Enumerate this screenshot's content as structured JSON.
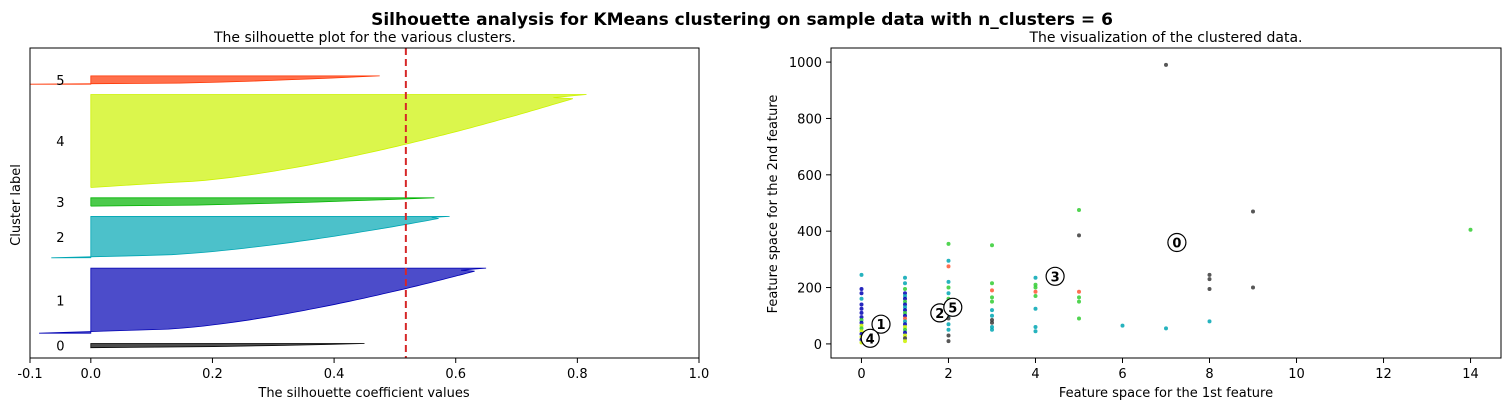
{
  "suptitle": "Silhouette analysis for KMeans clustering on sample data with n_clusters = 6",
  "chart_data": [
    {
      "type": "area",
      "title": "The silhouette plot for the various clusters.",
      "xlabel": "The silhouette coefficient values",
      "ylabel": "Cluster label",
      "xlim": [
        -0.1,
        1.0
      ],
      "xticks": [
        -0.1,
        0.0,
        0.2,
        0.4,
        0.6,
        0.8,
        1.0
      ],
      "xtick_labels": [
        "-0.1",
        "0.0",
        "0.2",
        "0.4",
        "0.6",
        "0.8",
        "1.0"
      ],
      "ylim": [
        0,
        300
      ],
      "average_silhouette_score": 0.518,
      "average_line_color": "#d62728",
      "clusters": [
        {
          "label": "0",
          "y_lower": 10,
          "y_upper": 14,
          "max": 0.45,
          "min": 0.0,
          "color": "#000000"
        },
        {
          "label": "1",
          "y_lower": 24,
          "y_upper": 87,
          "max": 0.65,
          "min": -0.085,
          "color": "#0000b3"
        },
        {
          "label": "2",
          "y_lower": 97,
          "y_upper": 137,
          "max": 0.59,
          "min": -0.065,
          "color": "#00a6b3"
        },
        {
          "label": "3",
          "y_lower": 147,
          "y_upper": 155,
          "max": 0.565,
          "min": 0.0,
          "color": "#00b300"
        },
        {
          "label": "4",
          "y_lower": 165,
          "y_upper": 255,
          "max": 0.815,
          "min": 0.0,
          "color": "#ccf200"
        },
        {
          "label": "5",
          "y_lower": 265,
          "y_upper": 273,
          "max": 0.475,
          "min": -0.1,
          "color": "#ff3300"
        }
      ]
    },
    {
      "type": "scatter",
      "title": "The visualization of the clustered data.",
      "xlabel": "Feature space for the 1st feature",
      "ylabel": "Feature space for the 2nd feature",
      "xlim": [
        -0.7,
        14.7
      ],
      "ylim": [
        -50,
        1050
      ],
      "xticks": [
        0,
        2,
        4,
        6,
        8,
        10,
        12,
        14
      ],
      "yticks": [
        0,
        200,
        400,
        600,
        800,
        1000
      ],
      "centers": [
        {
          "label": "0",
          "x": 7.25,
          "y": 360
        },
        {
          "label": "1",
          "x": 0.45,
          "y": 70
        },
        {
          "label": "2",
          "x": 1.8,
          "y": 110
        },
        {
          "label": "3",
          "x": 4.45,
          "y": 240
        },
        {
          "label": "4",
          "x": 0.2,
          "y": 20
        },
        {
          "label": "5",
          "x": 2.1,
          "y": 130
        }
      ],
      "points": [
        {
          "x": 7,
          "y": 990,
          "c": "#3a3a3a"
        },
        {
          "x": 9,
          "y": 470,
          "c": "#3a3a3a"
        },
        {
          "x": 5,
          "y": 385,
          "c": "#3a3a3a"
        },
        {
          "x": 8,
          "y": 245,
          "c": "#3a3a3a"
        },
        {
          "x": 8,
          "y": 230,
          "c": "#3a3a3a"
        },
        {
          "x": 8,
          "y": 195,
          "c": "#3a3a3a"
        },
        {
          "x": 9,
          "y": 200,
          "c": "#3a3a3a"
        },
        {
          "x": 14,
          "y": 405,
          "c": "#33cc33"
        },
        {
          "x": 5,
          "y": 475,
          "c": "#33cc33"
        },
        {
          "x": 5,
          "y": 165,
          "c": "#33cc33"
        },
        {
          "x": 5,
          "y": 150,
          "c": "#33cc33"
        },
        {
          "x": 5,
          "y": 90,
          "c": "#33cc33"
        },
        {
          "x": 5,
          "y": 185,
          "c": "#ff5533"
        },
        {
          "x": 4,
          "y": 235,
          "c": "#00a6b3"
        },
        {
          "x": 4,
          "y": 210,
          "c": "#33cc33"
        },
        {
          "x": 4,
          "y": 200,
          "c": "#33cc33"
        },
        {
          "x": 4,
          "y": 185,
          "c": "#ff5533"
        },
        {
          "x": 4,
          "y": 170,
          "c": "#33cc33"
        },
        {
          "x": 4,
          "y": 125,
          "c": "#00a6b3"
        },
        {
          "x": 4,
          "y": 60,
          "c": "#00a6b3"
        },
        {
          "x": 4,
          "y": 45,
          "c": "#00a6b3"
        },
        {
          "x": 3,
          "y": 350,
          "c": "#33cc33"
        },
        {
          "x": 3,
          "y": 215,
          "c": "#33cc33"
        },
        {
          "x": 3,
          "y": 190,
          "c": "#ff5533"
        },
        {
          "x": 3,
          "y": 165,
          "c": "#33cc33"
        },
        {
          "x": 3,
          "y": 150,
          "c": "#33cc33"
        },
        {
          "x": 3,
          "y": 120,
          "c": "#00a6b3"
        },
        {
          "x": 3,
          "y": 100,
          "c": "#00a6b3"
        },
        {
          "x": 3,
          "y": 85,
          "c": "#3a3a3a"
        },
        {
          "x": 3,
          "y": 75,
          "c": "#3a3a3a"
        },
        {
          "x": 3,
          "y": 60,
          "c": "#00a6b3"
        },
        {
          "x": 3,
          "y": 50,
          "c": "#00a6b3"
        },
        {
          "x": 2,
          "y": 355,
          "c": "#33cc33"
        },
        {
          "x": 2,
          "y": 295,
          "c": "#00a6b3"
        },
        {
          "x": 2,
          "y": 275,
          "c": "#ff5533"
        },
        {
          "x": 2,
          "y": 220,
          "c": "#00a6b3"
        },
        {
          "x": 2,
          "y": 200,
          "c": "#33cc33"
        },
        {
          "x": 2,
          "y": 180,
          "c": "#00a6b3"
        },
        {
          "x": 2,
          "y": 160,
          "c": "#33cc33"
        },
        {
          "x": 2,
          "y": 100,
          "c": "#00a6b3"
        },
        {
          "x": 2,
          "y": 90,
          "c": "#3a3a3a"
        },
        {
          "x": 2,
          "y": 70,
          "c": "#00a6b3"
        },
        {
          "x": 2,
          "y": 50,
          "c": "#00a6b3"
        },
        {
          "x": 2,
          "y": 30,
          "c": "#3a3a3a"
        },
        {
          "x": 2,
          "y": 10,
          "c": "#3a3a3a"
        },
        {
          "x": 1,
          "y": 235,
          "c": "#00a6b3"
        },
        {
          "x": 1,
          "y": 215,
          "c": "#00a6b3"
        },
        {
          "x": 1,
          "y": 195,
          "c": "#33cc33"
        },
        {
          "x": 1,
          "y": 180,
          "c": "#0000b3"
        },
        {
          "x": 1,
          "y": 170,
          "c": "#00a6b3"
        },
        {
          "x": 1,
          "y": 160,
          "c": "#0000b3"
        },
        {
          "x": 1,
          "y": 150,
          "c": "#33cc33"
        },
        {
          "x": 1,
          "y": 140,
          "c": "#0000b3"
        },
        {
          "x": 1,
          "y": 130,
          "c": "#00a6b3"
        },
        {
          "x": 1,
          "y": 120,
          "c": "#0000b3"
        },
        {
          "x": 1,
          "y": 110,
          "c": "#33cc33"
        },
        {
          "x": 1,
          "y": 100,
          "c": "#0000b3"
        },
        {
          "x": 1,
          "y": 90,
          "c": "#ff5533"
        },
        {
          "x": 1,
          "y": 80,
          "c": "#00a6b3"
        },
        {
          "x": 1,
          "y": 70,
          "c": "#0000b3"
        },
        {
          "x": 1,
          "y": 60,
          "c": "#ccf200"
        },
        {
          "x": 1,
          "y": 50,
          "c": "#33cc33"
        },
        {
          "x": 1,
          "y": 40,
          "c": "#0000b3"
        },
        {
          "x": 1,
          "y": 30,
          "c": "#ccf200"
        },
        {
          "x": 1,
          "y": 20,
          "c": "#3a3a3a"
        },
        {
          "x": 1,
          "y": 10,
          "c": "#ccf200"
        },
        {
          "x": 0,
          "y": 245,
          "c": "#00a6b3"
        },
        {
          "x": 0,
          "y": 195,
          "c": "#0000b3"
        },
        {
          "x": 0,
          "y": 180,
          "c": "#0000b3"
        },
        {
          "x": 0,
          "y": 160,
          "c": "#00a6b3"
        },
        {
          "x": 0,
          "y": 140,
          "c": "#0000b3"
        },
        {
          "x": 0,
          "y": 125,
          "c": "#0000b3"
        },
        {
          "x": 0,
          "y": 110,
          "c": "#0000b3"
        },
        {
          "x": 0,
          "y": 95,
          "c": "#0000b3"
        },
        {
          "x": 0,
          "y": 85,
          "c": "#33cc33"
        },
        {
          "x": 0,
          "y": 75,
          "c": "#0000b3"
        },
        {
          "x": 0,
          "y": 65,
          "c": "#ccf200"
        },
        {
          "x": 0,
          "y": 55,
          "c": "#33cc33"
        },
        {
          "x": 0,
          "y": 45,
          "c": "#ccf200"
        },
        {
          "x": 0,
          "y": 35,
          "c": "#0000b3"
        },
        {
          "x": 0,
          "y": 25,
          "c": "#ccf200"
        },
        {
          "x": 0,
          "y": 15,
          "c": "#0000b3"
        },
        {
          "x": 0,
          "y": 5,
          "c": "#ccf200"
        },
        {
          "x": 6,
          "y": 65,
          "c": "#00a6b3"
        },
        {
          "x": 7,
          "y": 55,
          "c": "#00a6b3"
        },
        {
          "x": 8,
          "y": 80,
          "c": "#00a6b3"
        }
      ]
    }
  ]
}
